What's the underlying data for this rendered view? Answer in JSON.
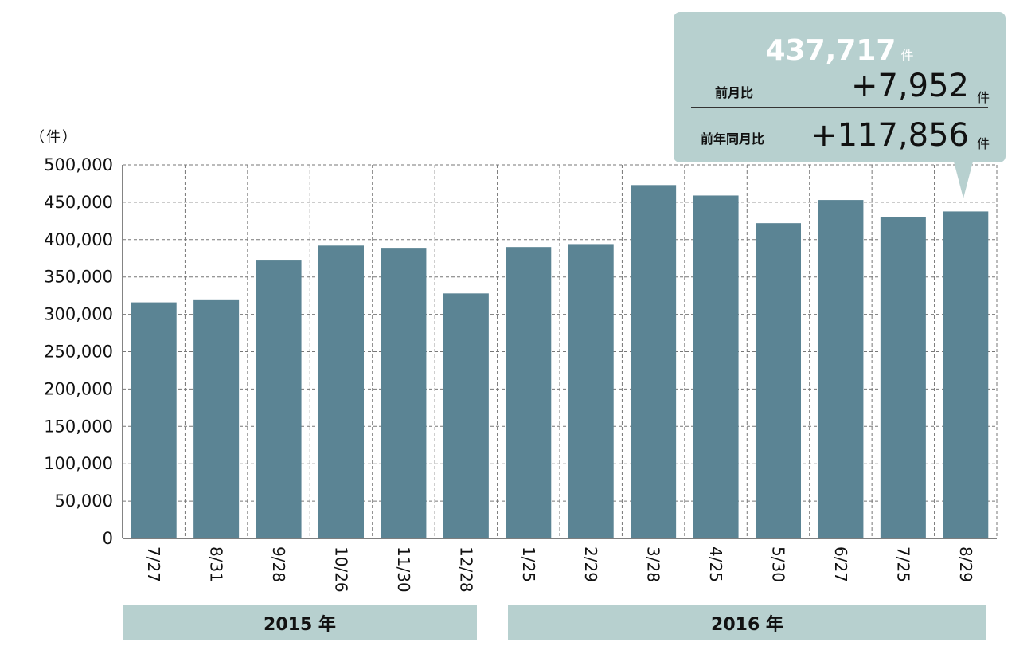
{
  "unit_label": "（件）",
  "year_labels": [
    "2015 年",
    "2016 年"
  ],
  "callout": {
    "total_value": "437,717",
    "total_unit": "件",
    "mom_label": "前月比",
    "mom_value": "+7,952",
    "mom_unit": "件",
    "yoy_label": "前年同月比",
    "yoy_value": "+117,856",
    "yoy_unit": "件"
  },
  "colors": {
    "bar": "#5b8494",
    "band": "#b7d0cf"
  },
  "chart_data": {
    "type": "bar",
    "categories": [
      "7/27",
      "8/31",
      "9/28",
      "10/26",
      "11/30",
      "12/28",
      "1/25",
      "2/29",
      "3/28",
      "4/25",
      "5/30",
      "6/27",
      "7/25",
      "8/29"
    ],
    "values": [
      316000,
      320000,
      372000,
      392000,
      389000,
      328000,
      390000,
      394000,
      473000,
      459000,
      422000,
      453000,
      430000,
      437717
    ],
    "ylim": [
      0,
      500000
    ],
    "yticks": [
      0,
      50000,
      100000,
      150000,
      200000,
      250000,
      300000,
      350000,
      400000,
      450000,
      500000
    ],
    "ytick_labels": [
      "0",
      "50,000",
      "100,000",
      "150,000",
      "200,000",
      "250,000",
      "300,000",
      "350,000",
      "400,000",
      "450,000",
      "500,000"
    ],
    "grid": true,
    "title": "",
    "xlabel": "",
    "ylabel": "（件）"
  }
}
